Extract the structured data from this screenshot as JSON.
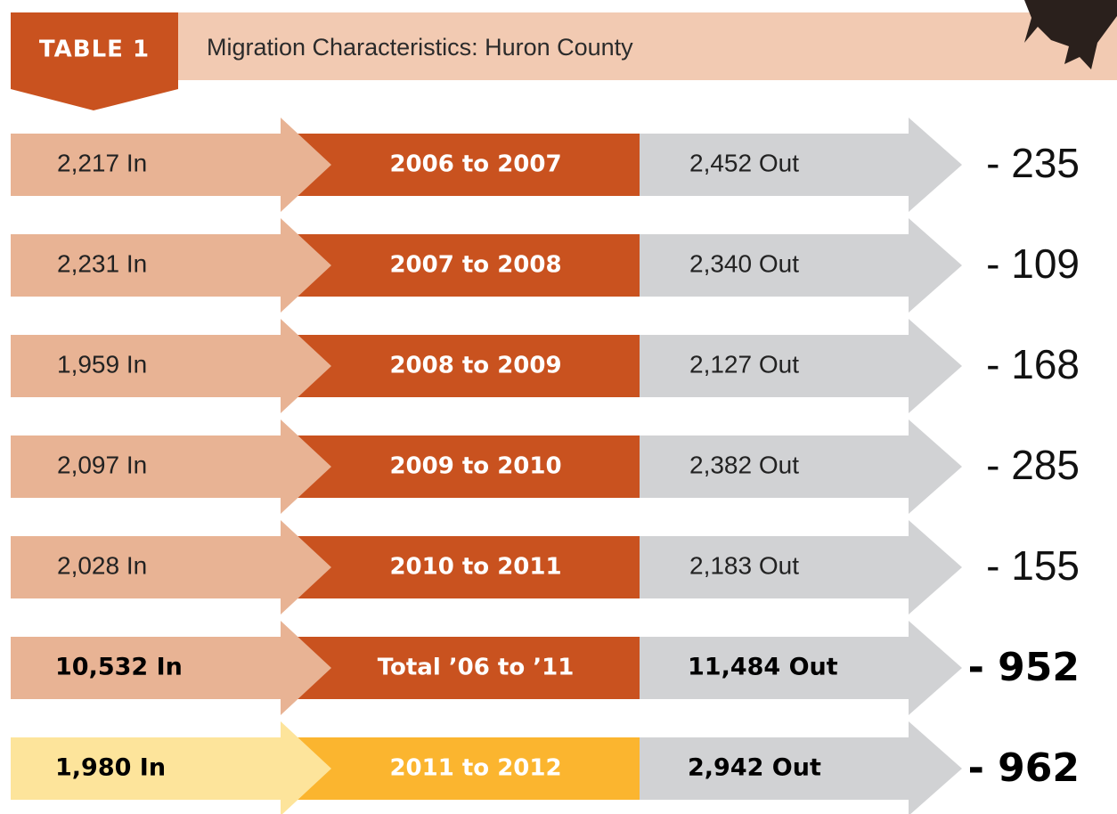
{
  "header": {
    "label": "TABLE 1",
    "title": "Migration Characteristics: Huron County"
  },
  "rows": [
    {
      "in": "2,217 In",
      "period": "2006 to 2007",
      "out": "2,452 Out",
      "net": "- 235"
    },
    {
      "in": "2,231 In",
      "period": "2007 to 2008",
      "out": "2,340 Out",
      "net": "- 109"
    },
    {
      "in": "1,959 In",
      "period": "2008 to 2009",
      "out": "2,127 Out",
      "net": "- 168"
    },
    {
      "in": "2,097 In",
      "period": "2009 to 2010",
      "out": "2,382 Out",
      "net": "- 285"
    },
    {
      "in": "2,028 In",
      "period": "2010 to 2011",
      "out": "2,183 Out",
      "net": "- 155"
    },
    {
      "in": "10,532 In",
      "period": "Total ’06 to ’11",
      "out": "11,484 Out",
      "net": "- 952",
      "bold": true
    },
    {
      "in": "1,980 In",
      "period": "2011 to 2012",
      "out": "2,942 Out",
      "net": "- 962",
      "bold": true,
      "in_color": "#fde49b",
      "period_color": "#fbb52f",
      "period_text_color": "#000000"
    }
  ]
}
